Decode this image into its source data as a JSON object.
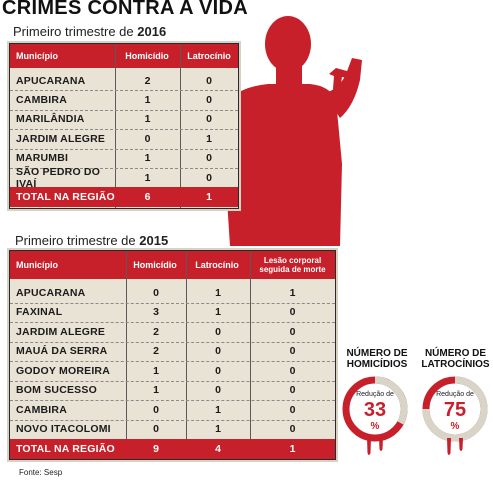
{
  "title": "CRIMES CONTRA A VIDA",
  "table2016": {
    "subtitle_prefix": "Primeiro trimestre de ",
    "subtitle_year": "2016",
    "headers": [
      "Município",
      "Homicídio",
      "Latrocínio"
    ],
    "rows": [
      [
        "APUCARANA",
        "2",
        "0"
      ],
      [
        "CAMBIRA",
        "1",
        "0"
      ],
      [
        "MARILÂNDIA",
        "1",
        "0"
      ],
      [
        "JARDIM ALEGRE",
        "0",
        "1"
      ],
      [
        "MARUMBI",
        "1",
        "0"
      ],
      [
        "SÃO PEDRO DO IVAÍ",
        "1",
        "0"
      ]
    ],
    "total": [
      "TOTAL NA REGIÃO",
      "6",
      "1"
    ]
  },
  "table2015": {
    "subtitle_prefix": "Primeiro trimestre de ",
    "subtitle_year": "2015",
    "headers": [
      "Município",
      "Homicídio",
      "Latrocínio",
      "Lesão corporal seguida de morte"
    ],
    "rows": [
      [
        "APUCARANA",
        "0",
        "1",
        "1"
      ],
      [
        "FAXINAL",
        "3",
        "1",
        "0"
      ],
      [
        "JARDIM ALEGRE",
        "2",
        "0",
        "0"
      ],
      [
        "MAUÁ DA SERRA",
        "2",
        "0",
        "0"
      ],
      [
        "GODOY  MOREIRA",
        "1",
        "0",
        "0"
      ],
      [
        "BOM SUCESSO",
        "1",
        "0",
        "0"
      ],
      [
        "CAMBIRA",
        "0",
        "1",
        "0"
      ],
      [
        "NOVO ITACOLOMI",
        "0",
        "1",
        "0"
      ]
    ],
    "total": [
      "TOTAL NA REGIÃO",
      "9",
      "4",
      "1"
    ]
  },
  "gauges": [
    {
      "label_line1": "NÚMERO DE",
      "label_line2": "HOMICÍDIOS",
      "caption": "Redução de",
      "value": "33",
      "unit": "%",
      "fraction": 0.33
    },
    {
      "label_line1": "NÚMERO DE",
      "label_line2": "LATROCÍNIOS",
      "caption": "Redução de",
      "value": "75",
      "unit": "%",
      "fraction": 0.75
    }
  ],
  "source": "Fonte: Sesp",
  "colors": {
    "accent": "#c8202b",
    "table_bg": "#e9e3d6"
  }
}
